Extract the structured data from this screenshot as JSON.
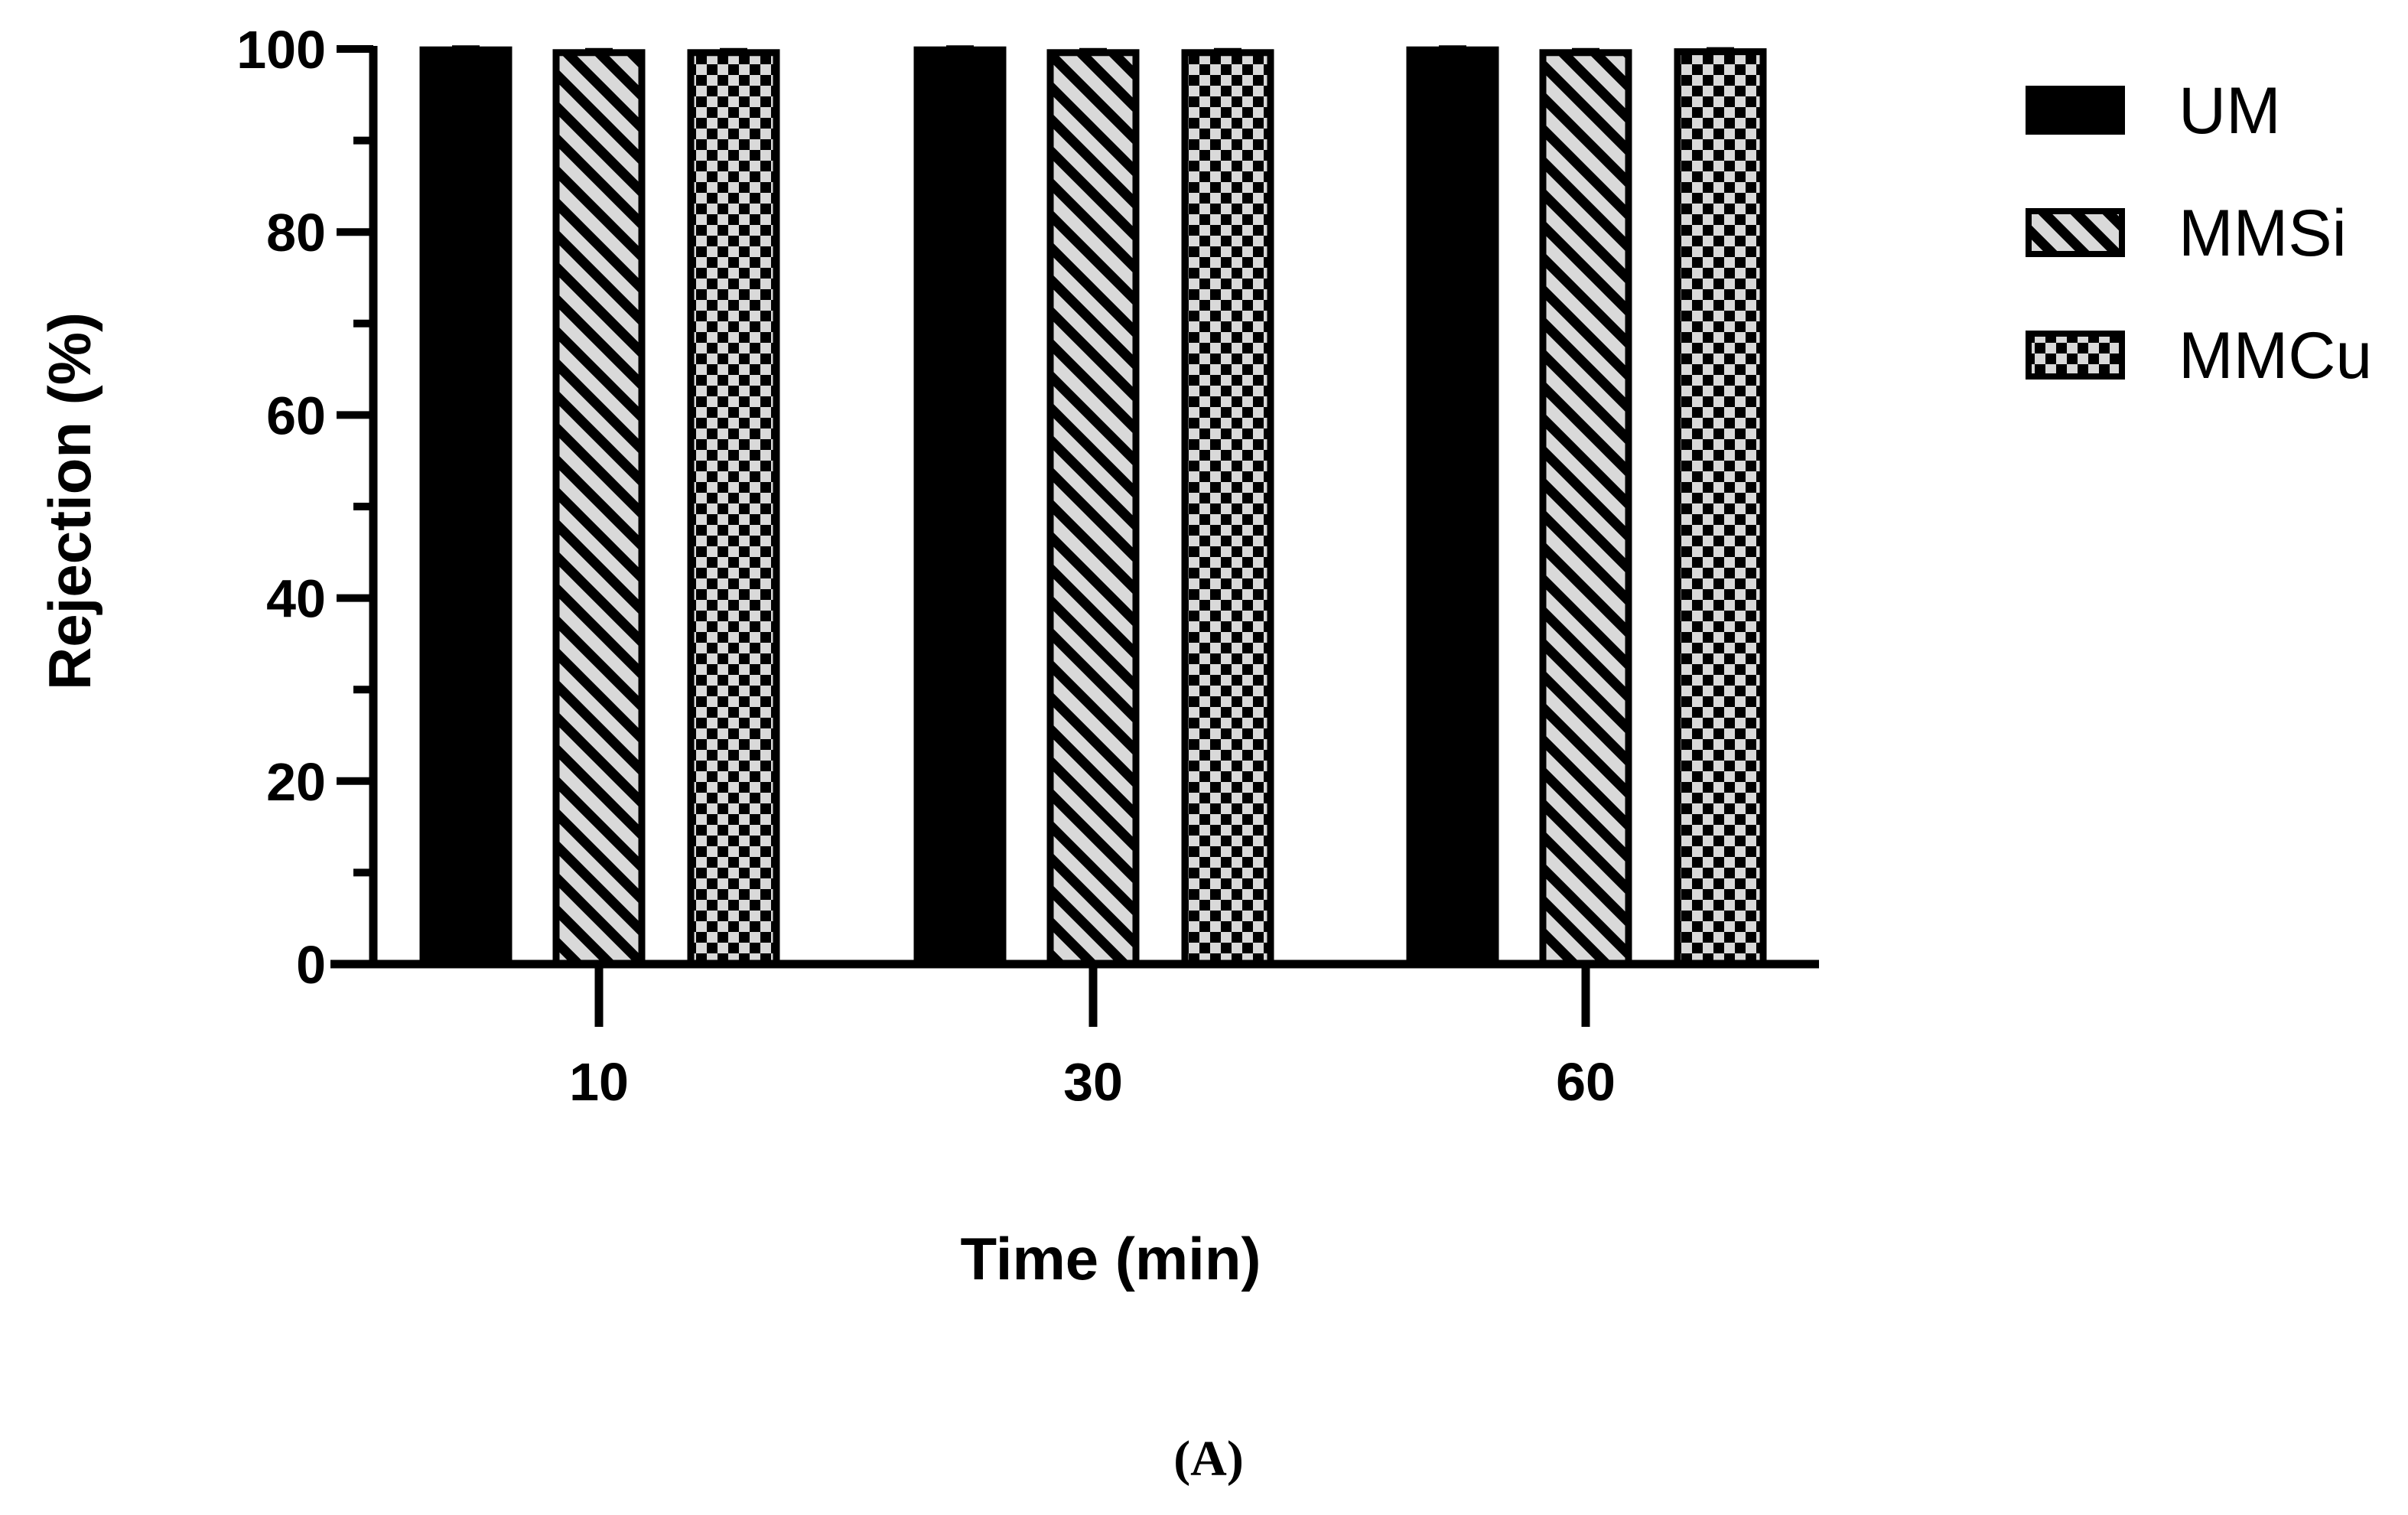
{
  "chart_data": {
    "type": "bar",
    "title": "",
    "xlabel": "Time (min)",
    "ylabel": "Rejection (%)",
    "ylim": [
      0,
      100
    ],
    "yticks": [
      0,
      20,
      40,
      60,
      80,
      100
    ],
    "grid": false,
    "legend_position": "top-right",
    "categories": [
      "10",
      "30",
      "60"
    ],
    "series": [
      {
        "name": "UM",
        "values": [
          99.9,
          99.9,
          99.9
        ],
        "pattern": "solid",
        "color": "#000000"
      },
      {
        "name": "MMSi",
        "values": [
          99.6,
          99.6,
          99.6
        ],
        "pattern": "diagonal-stripes",
        "color": "#d9d9d9"
      },
      {
        "name": "MMCu",
        "values": [
          99.6,
          99.6,
          99.7
        ],
        "pattern": "checkerboard",
        "color": "#d9d9d9"
      }
    ]
  },
  "panel_label": "(A)"
}
